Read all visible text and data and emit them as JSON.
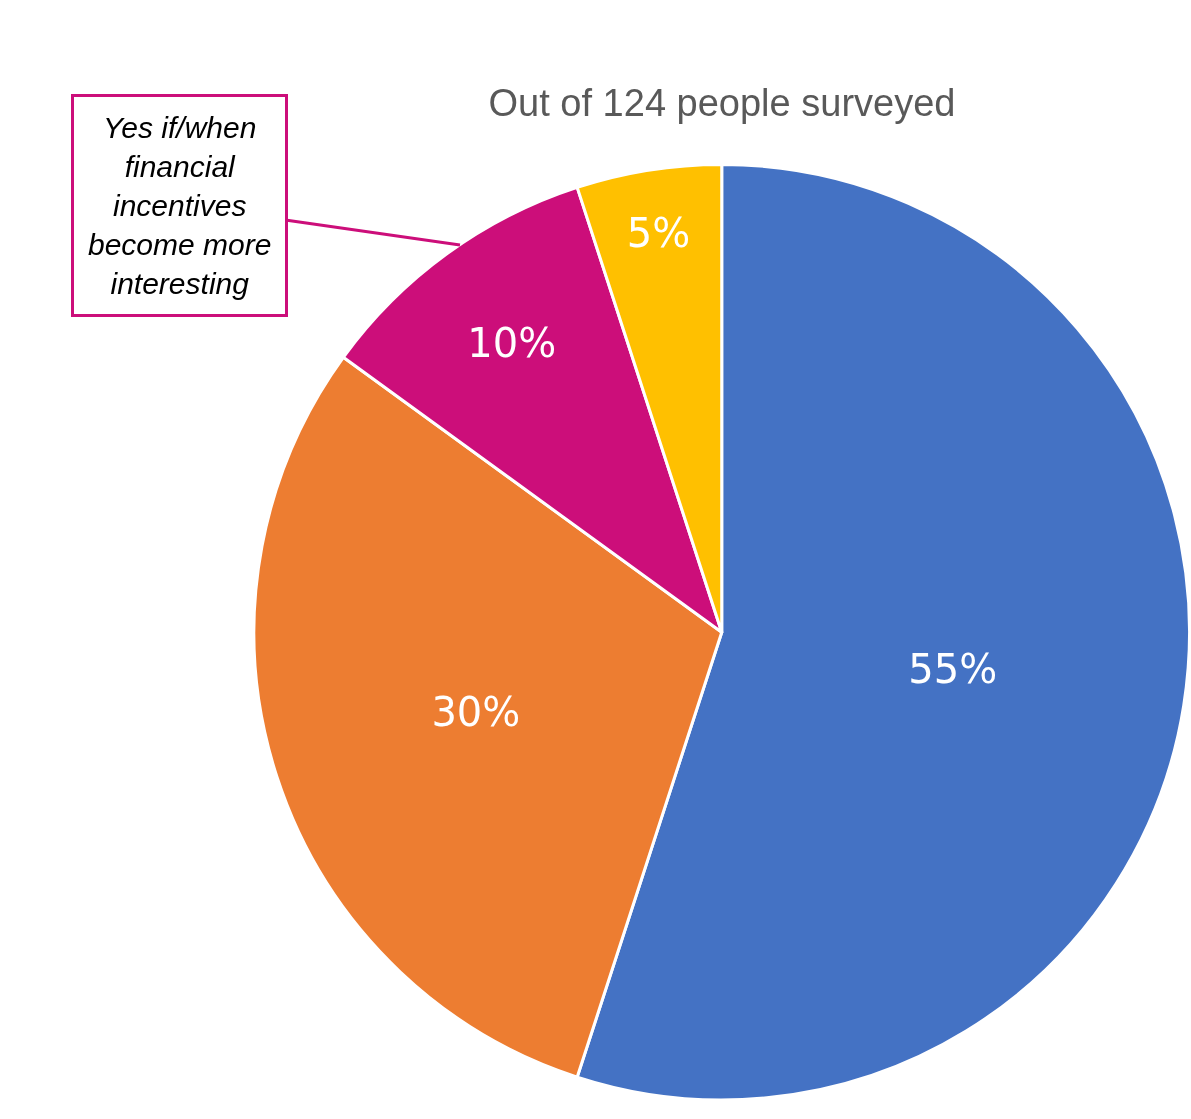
{
  "chart_data": {
    "type": "pie",
    "title": "Out of 124 people surveyed",
    "categories": [
      null,
      null,
      null,
      null
    ],
    "values": [
      55,
      30,
      10,
      5
    ],
    "colors": [
      "#4472c4",
      "#ed7d31",
      "#cc0e7a",
      "#ffc000"
    ],
    "value_labels": [
      "55%",
      "30%",
      "10%",
      "5%"
    ],
    "annotations": [
      "Yes if/when financial incentives become more interesting"
    ],
    "legend": false
  }
}
